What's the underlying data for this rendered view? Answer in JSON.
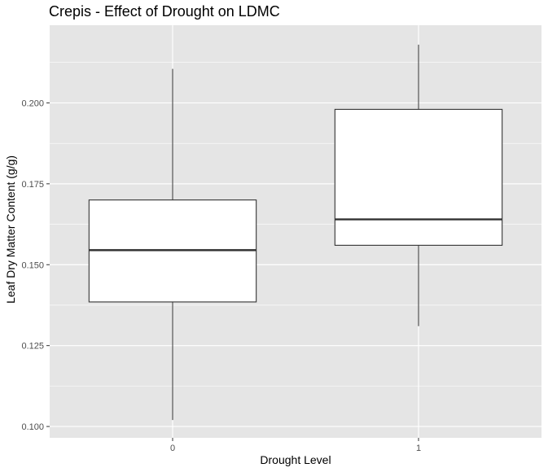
{
  "chart_data": {
    "type": "boxplot",
    "title": "Crepis - Effect of Drought on LDMC",
    "xlabel": "Drought Level",
    "ylabel": "Leaf Dry Matter Content (g/g)",
    "categories": [
      "0",
      "1"
    ],
    "boxes": [
      {
        "category": "0",
        "min": 0.102,
        "q1": 0.1385,
        "median": 0.1545,
        "q3": 0.17,
        "max": 0.2105
      },
      {
        "category": "1",
        "min": 0.131,
        "q1": 0.156,
        "median": 0.164,
        "q3": 0.198,
        "max": 0.218
      }
    ],
    "yticks": [
      0.1,
      0.125,
      0.15,
      0.175,
      0.2
    ],
    "ytick_labels": [
      "0.100",
      "0.125",
      "0.150",
      "0.175",
      "0.200"
    ],
    "ylim": [
      0.0965,
      0.224
    ],
    "grid": true,
    "panel_background": "#e5e5e5",
    "grid_color": "#ffffff",
    "box_fill": "#ffffff",
    "box_stroke": "#333333"
  }
}
